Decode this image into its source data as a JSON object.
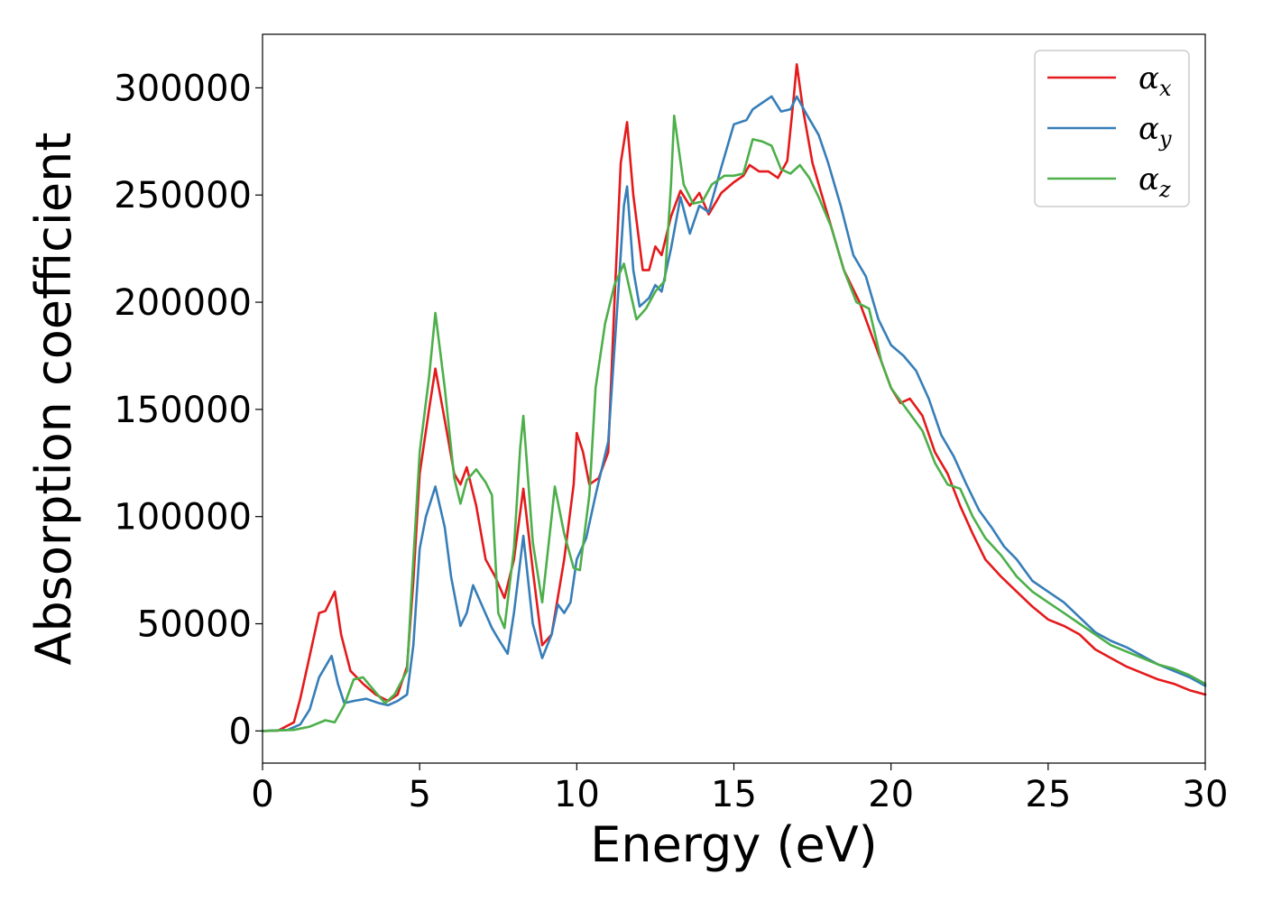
{
  "chart_data": {
    "type": "line",
    "title": "",
    "xlabel": "Energy (eV)",
    "ylabel": "Absorption coefficient",
    "xlim": [
      0,
      30
    ],
    "ylim": [
      -15000,
      325000
    ],
    "xticks": [
      0,
      5,
      10,
      15,
      20,
      25,
      30
    ],
    "yticks": [
      0,
      50000,
      100000,
      150000,
      200000,
      250000,
      300000
    ],
    "xtick_labels": [
      "0",
      "5",
      "10",
      "15",
      "20",
      "25",
      "30"
    ],
    "ytick_labels": [
      "0",
      "50000",
      "100000",
      "150000",
      "200000",
      "250000",
      "300000"
    ],
    "grid": false,
    "legend_position": "top-right",
    "series": [
      {
        "name": "αx",
        "symbol": "α",
        "subscript": "x",
        "color": "#e41a1c",
        "points": [
          [
            0,
            0
          ],
          [
            0.5,
            200
          ],
          [
            1.0,
            4000
          ],
          [
            1.2,
            15000
          ],
          [
            1.5,
            35000
          ],
          [
            1.8,
            55000
          ],
          [
            2.0,
            56000
          ],
          [
            2.3,
            65000
          ],
          [
            2.5,
            45000
          ],
          [
            2.8,
            28000
          ],
          [
            3.2,
            22000
          ],
          [
            3.6,
            17000
          ],
          [
            4.0,
            14000
          ],
          [
            4.3,
            17000
          ],
          [
            4.6,
            30000
          ],
          [
            4.8,
            70000
          ],
          [
            5.0,
            120000
          ],
          [
            5.3,
            150000
          ],
          [
            5.5,
            169000
          ],
          [
            5.8,
            145000
          ],
          [
            6.1,
            120000
          ],
          [
            6.3,
            115000
          ],
          [
            6.5,
            123000
          ],
          [
            6.8,
            105000
          ],
          [
            7.1,
            80000
          ],
          [
            7.4,
            72000
          ],
          [
            7.7,
            62000
          ],
          [
            8.0,
            80000
          ],
          [
            8.3,
            113000
          ],
          [
            8.6,
            75000
          ],
          [
            8.9,
            40000
          ],
          [
            9.2,
            45000
          ],
          [
            9.6,
            80000
          ],
          [
            9.9,
            115000
          ],
          [
            10.0,
            139000
          ],
          [
            10.2,
            130000
          ],
          [
            10.4,
            115000
          ],
          [
            10.7,
            118000
          ],
          [
            11.0,
            130000
          ],
          [
            11.2,
            200000
          ],
          [
            11.4,
            265000
          ],
          [
            11.6,
            284000
          ],
          [
            11.8,
            250000
          ],
          [
            12.1,
            215000
          ],
          [
            12.3,
            215000
          ],
          [
            12.5,
            226000
          ],
          [
            12.7,
            222000
          ],
          [
            13.0,
            240000
          ],
          [
            13.3,
            252000
          ],
          [
            13.6,
            245000
          ],
          [
            13.9,
            251000
          ],
          [
            14.2,
            241000
          ],
          [
            14.6,
            251000
          ],
          [
            15.0,
            256000
          ],
          [
            15.3,
            259000
          ],
          [
            15.5,
            264000
          ],
          [
            15.8,
            261000
          ],
          [
            16.1,
            261000
          ],
          [
            16.4,
            258000
          ],
          [
            16.7,
            266000
          ],
          [
            16.9,
            295000
          ],
          [
            17.0,
            311000
          ],
          [
            17.2,
            290000
          ],
          [
            17.5,
            265000
          ],
          [
            17.8,
            250000
          ],
          [
            18.1,
            235000
          ],
          [
            18.5,
            215000
          ],
          [
            19.0,
            200000
          ],
          [
            19.5,
            180000
          ],
          [
            20.0,
            160000
          ],
          [
            20.3,
            153000
          ],
          [
            20.6,
            155000
          ],
          [
            21.0,
            147000
          ],
          [
            21.4,
            130000
          ],
          [
            21.8,
            120000
          ],
          [
            22.2,
            105000
          ],
          [
            22.6,
            92000
          ],
          [
            23.0,
            80000
          ],
          [
            23.5,
            72000
          ],
          [
            24.0,
            65000
          ],
          [
            24.5,
            58000
          ],
          [
            25.0,
            52000
          ],
          [
            25.5,
            49000
          ],
          [
            26.0,
            45000
          ],
          [
            26.5,
            38000
          ],
          [
            27.0,
            34000
          ],
          [
            27.5,
            30000
          ],
          [
            28.0,
            27000
          ],
          [
            28.5,
            24000
          ],
          [
            29.0,
            22000
          ],
          [
            29.5,
            19000
          ],
          [
            30.0,
            17000
          ]
        ]
      },
      {
        "name": "αy",
        "symbol": "α",
        "subscript": "y",
        "color": "#377eb8",
        "points": [
          [
            0,
            0
          ],
          [
            0.8,
            500
          ],
          [
            1.2,
            3000
          ],
          [
            1.5,
            10000
          ],
          [
            1.8,
            25000
          ],
          [
            2.0,
            30000
          ],
          [
            2.2,
            35000
          ],
          [
            2.4,
            22000
          ],
          [
            2.6,
            13000
          ],
          [
            2.9,
            14000
          ],
          [
            3.3,
            15000
          ],
          [
            3.7,
            13000
          ],
          [
            4.0,
            12000
          ],
          [
            4.3,
            14000
          ],
          [
            4.6,
            17000
          ],
          [
            4.8,
            40000
          ],
          [
            5.0,
            85000
          ],
          [
            5.2,
            100000
          ],
          [
            5.5,
            114000
          ],
          [
            5.8,
            95000
          ],
          [
            6.0,
            72000
          ],
          [
            6.3,
            49000
          ],
          [
            6.5,
            55000
          ],
          [
            6.7,
            68000
          ],
          [
            7.0,
            58000
          ],
          [
            7.3,
            48000
          ],
          [
            7.5,
            43000
          ],
          [
            7.8,
            36000
          ],
          [
            8.0,
            55000
          ],
          [
            8.3,
            91000
          ],
          [
            8.6,
            50000
          ],
          [
            8.9,
            34000
          ],
          [
            9.2,
            45000
          ],
          [
            9.4,
            59000
          ],
          [
            9.6,
            55000
          ],
          [
            9.8,
            60000
          ],
          [
            10.0,
            80000
          ],
          [
            10.3,
            90000
          ],
          [
            10.6,
            110000
          ],
          [
            11.0,
            135000
          ],
          [
            11.3,
            200000
          ],
          [
            11.5,
            245000
          ],
          [
            11.6,
            254000
          ],
          [
            11.8,
            215000
          ],
          [
            12.0,
            198000
          ],
          [
            12.3,
            202000
          ],
          [
            12.5,
            208000
          ],
          [
            12.7,
            205000
          ],
          [
            13.0,
            225000
          ],
          [
            13.3,
            249000
          ],
          [
            13.6,
            232000
          ],
          [
            13.9,
            245000
          ],
          [
            14.2,
            242000
          ],
          [
            14.6,
            263000
          ],
          [
            15.0,
            283000
          ],
          [
            15.4,
            285000
          ],
          [
            15.6,
            290000
          ],
          [
            15.9,
            293000
          ],
          [
            16.2,
            296000
          ],
          [
            16.5,
            289000
          ],
          [
            16.8,
            290000
          ],
          [
            17.0,
            296000
          ],
          [
            17.3,
            288000
          ],
          [
            17.7,
            278000
          ],
          [
            18.0,
            265000
          ],
          [
            18.4,
            245000
          ],
          [
            18.8,
            222000
          ],
          [
            19.2,
            212000
          ],
          [
            19.6,
            192000
          ],
          [
            20.0,
            180000
          ],
          [
            20.4,
            175000
          ],
          [
            20.8,
            168000
          ],
          [
            21.2,
            155000
          ],
          [
            21.6,
            138000
          ],
          [
            22.0,
            128000
          ],
          [
            22.4,
            115000
          ],
          [
            22.8,
            103000
          ],
          [
            23.2,
            95000
          ],
          [
            23.6,
            86000
          ],
          [
            24.0,
            80000
          ],
          [
            24.5,
            70000
          ],
          [
            25.0,
            65000
          ],
          [
            25.5,
            60000
          ],
          [
            26.0,
            53000
          ],
          [
            26.5,
            46000
          ],
          [
            27.0,
            42000
          ],
          [
            27.5,
            39000
          ],
          [
            28.0,
            35000
          ],
          [
            28.5,
            31000
          ],
          [
            29.0,
            28000
          ],
          [
            29.5,
            25000
          ],
          [
            30.0,
            21000
          ]
        ]
      },
      {
        "name": "αz",
        "symbol": "α",
        "subscript": "z",
        "color": "#4daf4a",
        "points": [
          [
            0,
            0
          ],
          [
            1.0,
            500
          ],
          [
            1.5,
            2000
          ],
          [
            2.0,
            5000
          ],
          [
            2.3,
            4000
          ],
          [
            2.6,
            12000
          ],
          [
            2.9,
            24000
          ],
          [
            3.2,
            25000
          ],
          [
            3.6,
            18000
          ],
          [
            3.9,
            13000
          ],
          [
            4.2,
            17000
          ],
          [
            4.6,
            28000
          ],
          [
            4.8,
            80000
          ],
          [
            5.0,
            130000
          ],
          [
            5.3,
            165000
          ],
          [
            5.5,
            195000
          ],
          [
            5.8,
            160000
          ],
          [
            6.1,
            118000
          ],
          [
            6.3,
            106000
          ],
          [
            6.5,
            117000
          ],
          [
            6.8,
            122000
          ],
          [
            7.1,
            116000
          ],
          [
            7.3,
            110000
          ],
          [
            7.5,
            55000
          ],
          [
            7.7,
            48000
          ],
          [
            8.0,
            85000
          ],
          [
            8.2,
            132000
          ],
          [
            8.3,
            147000
          ],
          [
            8.6,
            88000
          ],
          [
            8.9,
            60000
          ],
          [
            9.2,
            100000
          ],
          [
            9.3,
            114000
          ],
          [
            9.6,
            92000
          ],
          [
            9.9,
            76000
          ],
          [
            10.1,
            75000
          ],
          [
            10.4,
            110000
          ],
          [
            10.6,
            160000
          ],
          [
            10.9,
            190000
          ],
          [
            11.2,
            208000
          ],
          [
            11.5,
            218000
          ],
          [
            11.7,
            205000
          ],
          [
            11.9,
            192000
          ],
          [
            12.2,
            197000
          ],
          [
            12.5,
            205000
          ],
          [
            12.8,
            210000
          ],
          [
            13.0,
            255000
          ],
          [
            13.1,
            287000
          ],
          [
            13.4,
            255000
          ],
          [
            13.7,
            246000
          ],
          [
            14.0,
            247000
          ],
          [
            14.3,
            255000
          ],
          [
            14.7,
            259000
          ],
          [
            15.0,
            259000
          ],
          [
            15.3,
            260000
          ],
          [
            15.6,
            276000
          ],
          [
            15.9,
            275000
          ],
          [
            16.2,
            273000
          ],
          [
            16.5,
            262000
          ],
          [
            16.8,
            260000
          ],
          [
            17.1,
            264000
          ],
          [
            17.4,
            258000
          ],
          [
            17.7,
            249000
          ],
          [
            18.1,
            235000
          ],
          [
            18.5,
            215000
          ],
          [
            18.9,
            200000
          ],
          [
            19.3,
            197000
          ],
          [
            19.7,
            172000
          ],
          [
            20.0,
            160000
          ],
          [
            20.5,
            150000
          ],
          [
            21.0,
            140000
          ],
          [
            21.4,
            125000
          ],
          [
            21.8,
            115000
          ],
          [
            22.2,
            113000
          ],
          [
            22.6,
            100000
          ],
          [
            23.0,
            90000
          ],
          [
            23.5,
            82000
          ],
          [
            24.0,
            72000
          ],
          [
            24.5,
            65000
          ],
          [
            25.0,
            60000
          ],
          [
            25.5,
            55000
          ],
          [
            26.0,
            50000
          ],
          [
            26.5,
            45000
          ],
          [
            27.0,
            40000
          ],
          [
            27.5,
            37000
          ],
          [
            28.0,
            34000
          ],
          [
            28.5,
            31000
          ],
          [
            29.0,
            29000
          ],
          [
            29.5,
            26000
          ],
          [
            30.0,
            22000
          ]
        ]
      }
    ]
  }
}
